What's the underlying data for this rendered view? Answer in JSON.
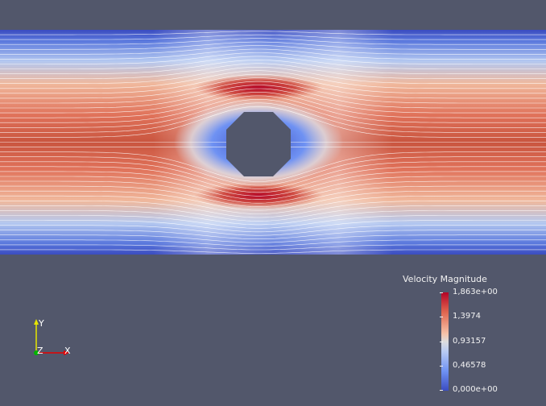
{
  "legend": {
    "title": "Velocity Magnitude",
    "ticks": [
      "1,863e+00",
      "1,3974",
      "0,93157",
      "0,46578",
      "0,000e+00"
    ]
  },
  "axes": {
    "y": "Y",
    "z": "Z",
    "x": "X"
  },
  "colors": {
    "background": "#52576b",
    "high": "#b40426",
    "mid": "#dddddd",
    "low": "#3b4cc0",
    "axis_y": "#e6e600",
    "axis_x": "#e60000",
    "axis_z": "#00b300"
  }
}
